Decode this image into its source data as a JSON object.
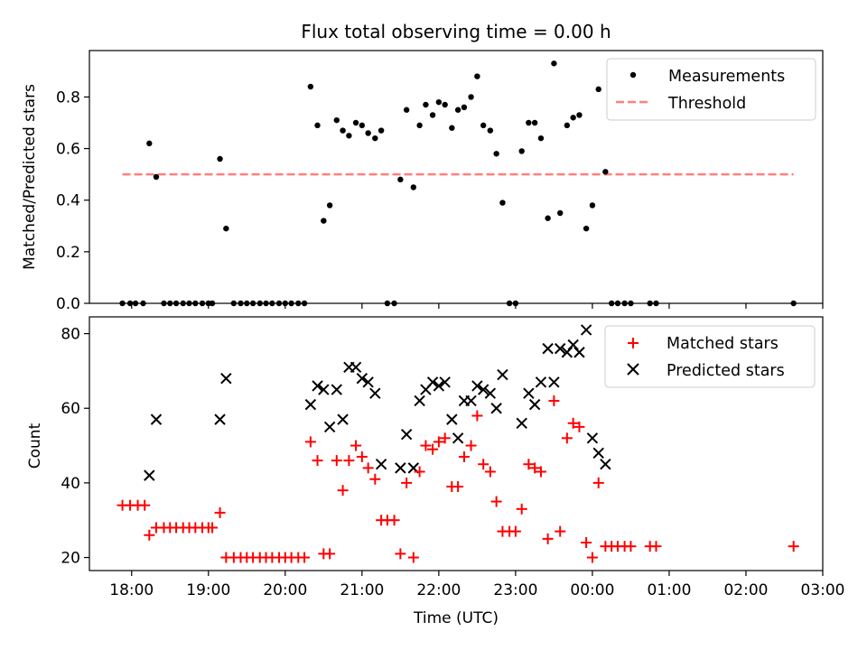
{
  "chart_data": [
    {
      "type": "scatter",
      "title": "Flux total observing time = 0.00 h",
      "xlabel": "",
      "ylabel": "Matched/Predicted stars",
      "x_unit": "hours after 18:00 UTC",
      "xlim": [
        -0.55,
        9.0
      ],
      "ylim": [
        0.0,
        0.98
      ],
      "yticks": [
        0.0,
        0.2,
        0.4,
        0.6,
        0.8
      ],
      "legend_position": "top-right",
      "legend": [
        "Measurements",
        "Threshold"
      ],
      "threshold": {
        "name": "Threshold",
        "value": 0.5,
        "x_range": [
          -0.12,
          8.62
        ],
        "color": "#ff7f7f",
        "style": "dashed"
      },
      "series": [
        {
          "name": "Measurements",
          "marker": "dot",
          "color": "#000000",
          "points": [
            [
              -0.12,
              0.0
            ],
            [
              -0.02,
              0.0
            ],
            [
              0.05,
              0.0
            ],
            [
              0.15,
              0.0
            ],
            [
              0.23,
              0.62
            ],
            [
              0.32,
              0.49
            ],
            [
              0.42,
              0.0
            ],
            [
              0.5,
              0.0
            ],
            [
              0.58,
              0.0
            ],
            [
              0.67,
              0.0
            ],
            [
              0.75,
              0.0
            ],
            [
              0.83,
              0.0
            ],
            [
              0.92,
              0.0
            ],
            [
              1.0,
              0.0
            ],
            [
              1.05,
              0.0
            ],
            [
              1.15,
              0.56
            ],
            [
              1.23,
              0.29
            ],
            [
              1.33,
              0.0
            ],
            [
              1.42,
              0.0
            ],
            [
              1.5,
              0.0
            ],
            [
              1.58,
              0.0
            ],
            [
              1.67,
              0.0
            ],
            [
              1.75,
              0.0
            ],
            [
              1.83,
              0.0
            ],
            [
              1.92,
              0.0
            ],
            [
              2.0,
              0.0
            ],
            [
              2.08,
              0.0
            ],
            [
              2.17,
              0.0
            ],
            [
              2.25,
              0.0
            ],
            [
              2.33,
              0.84
            ],
            [
              2.42,
              0.69
            ],
            [
              2.5,
              0.32
            ],
            [
              2.58,
              0.38
            ],
            [
              2.67,
              0.71
            ],
            [
              2.75,
              0.67
            ],
            [
              2.83,
              0.65
            ],
            [
              2.92,
              0.7
            ],
            [
              3.0,
              0.69
            ],
            [
              3.08,
              0.66
            ],
            [
              3.17,
              0.64
            ],
            [
              3.25,
              0.67
            ],
            [
              3.33,
              0.0
            ],
            [
              3.42,
              0.0
            ],
            [
              3.5,
              0.48
            ],
            [
              3.58,
              0.75
            ],
            [
              3.67,
              0.45
            ],
            [
              3.75,
              0.69
            ],
            [
              3.83,
              0.77
            ],
            [
              3.92,
              0.73
            ],
            [
              4.0,
              0.78
            ],
            [
              4.08,
              0.77
            ],
            [
              4.17,
              0.68
            ],
            [
              4.25,
              0.75
            ],
            [
              4.33,
              0.76
            ],
            [
              4.42,
              0.8
            ],
            [
              4.5,
              0.88
            ],
            [
              4.58,
              0.69
            ],
            [
              4.67,
              0.67
            ],
            [
              4.75,
              0.58
            ],
            [
              4.83,
              0.39
            ],
            [
              4.92,
              0.0
            ],
            [
              5.0,
              0.0
            ],
            [
              5.08,
              0.59
            ],
            [
              5.17,
              0.7
            ],
            [
              5.25,
              0.7
            ],
            [
              5.33,
              0.64
            ],
            [
              5.42,
              0.33
            ],
            [
              5.5,
              0.93
            ],
            [
              5.58,
              0.35
            ],
            [
              5.67,
              0.69
            ],
            [
              5.75,
              0.72
            ],
            [
              5.83,
              0.73
            ],
            [
              5.92,
              0.29
            ],
            [
              6.0,
              0.38
            ],
            [
              6.08,
              0.83
            ],
            [
              6.17,
              0.51
            ],
            [
              6.25,
              0.0
            ],
            [
              6.33,
              0.0
            ],
            [
              6.42,
              0.0
            ],
            [
              6.5,
              0.0
            ],
            [
              6.75,
              0.0
            ],
            [
              6.83,
              0.0
            ],
            [
              8.62,
              0.0
            ]
          ]
        }
      ]
    },
    {
      "type": "scatter",
      "title": "",
      "xlabel": "Time (UTC)",
      "ylabel": "Count",
      "x_unit": "hours after 18:00 UTC",
      "xlim": [
        -0.55,
        9.0
      ],
      "ylim": [
        16.5,
        84.5
      ],
      "yticks": [
        20,
        40,
        60,
        80
      ],
      "xtick_labels": [
        "18:00",
        "19:00",
        "20:00",
        "21:00",
        "22:00",
        "23:00",
        "00:00",
        "01:00",
        "02:00",
        "03:00"
      ],
      "legend_position": "top-right",
      "legend": [
        "Matched stars",
        "Predicted stars"
      ],
      "series": [
        {
          "name": "Matched stars",
          "marker": "plus",
          "color": "#ff0000",
          "points": [
            [
              -0.12,
              34
            ],
            [
              -0.02,
              34
            ],
            [
              0.08,
              34
            ],
            [
              0.17,
              34
            ],
            [
              0.23,
              26
            ],
            [
              0.32,
              28
            ],
            [
              0.42,
              28
            ],
            [
              0.5,
              28
            ],
            [
              0.58,
              28
            ],
            [
              0.67,
              28
            ],
            [
              0.75,
              28
            ],
            [
              0.83,
              28
            ],
            [
              0.92,
              28
            ],
            [
              1.0,
              28
            ],
            [
              1.05,
              28
            ],
            [
              1.15,
              32
            ],
            [
              1.23,
              20
            ],
            [
              1.33,
              20
            ],
            [
              1.42,
              20
            ],
            [
              1.5,
              20
            ],
            [
              1.58,
              20
            ],
            [
              1.67,
              20
            ],
            [
              1.75,
              20
            ],
            [
              1.83,
              20
            ],
            [
              1.92,
              20
            ],
            [
              2.0,
              20
            ],
            [
              2.08,
              20
            ],
            [
              2.17,
              20
            ],
            [
              2.25,
              20
            ],
            [
              2.33,
              51
            ],
            [
              2.42,
              46
            ],
            [
              2.5,
              21
            ],
            [
              2.58,
              21
            ],
            [
              2.67,
              46
            ],
            [
              2.75,
              38
            ],
            [
              2.83,
              46
            ],
            [
              2.92,
              50
            ],
            [
              3.0,
              47
            ],
            [
              3.08,
              44
            ],
            [
              3.17,
              41
            ],
            [
              3.25,
              30
            ],
            [
              3.33,
              30
            ],
            [
              3.42,
              30
            ],
            [
              3.5,
              21
            ],
            [
              3.58,
              40
            ],
            [
              3.67,
              20
            ],
            [
              3.75,
              43
            ],
            [
              3.83,
              50
            ],
            [
              3.92,
              49
            ],
            [
              4.0,
              51
            ],
            [
              4.08,
              52
            ],
            [
              4.17,
              39
            ],
            [
              4.25,
              39
            ],
            [
              4.33,
              47
            ],
            [
              4.42,
              50
            ],
            [
              4.5,
              58
            ],
            [
              4.58,
              45
            ],
            [
              4.67,
              43
            ],
            [
              4.75,
              35
            ],
            [
              4.83,
              27
            ],
            [
              4.92,
              27
            ],
            [
              5.0,
              27
            ],
            [
              5.08,
              33
            ],
            [
              5.17,
              45
            ],
            [
              5.25,
              44
            ],
            [
              5.33,
              43
            ],
            [
              5.42,
              25
            ],
            [
              5.5,
              62
            ],
            [
              5.58,
              27
            ],
            [
              5.67,
              52
            ],
            [
              5.75,
              56
            ],
            [
              5.83,
              55
            ],
            [
              5.92,
              24
            ],
            [
              6.0,
              20
            ],
            [
              6.08,
              40
            ],
            [
              6.17,
              23
            ],
            [
              6.25,
              23
            ],
            [
              6.33,
              23
            ],
            [
              6.42,
              23
            ],
            [
              6.5,
              23
            ],
            [
              6.75,
              23
            ],
            [
              6.83,
              23
            ],
            [
              8.62,
              23
            ]
          ]
        },
        {
          "name": "Predicted stars",
          "marker": "x",
          "color": "#000000",
          "points": [
            [
              0.23,
              42
            ],
            [
              0.32,
              57
            ],
            [
              1.15,
              57
            ],
            [
              1.23,
              68
            ],
            [
              2.33,
              61
            ],
            [
              2.42,
              66
            ],
            [
              2.5,
              65
            ],
            [
              2.58,
              55
            ],
            [
              2.67,
              65
            ],
            [
              2.75,
              57
            ],
            [
              2.83,
              71
            ],
            [
              2.92,
              71
            ],
            [
              3.0,
              68
            ],
            [
              3.08,
              67
            ],
            [
              3.17,
              64
            ],
            [
              3.25,
              45
            ],
            [
              3.5,
              44
            ],
            [
              3.58,
              53
            ],
            [
              3.67,
              44
            ],
            [
              3.75,
              62
            ],
            [
              3.83,
              65
            ],
            [
              3.92,
              67
            ],
            [
              4.0,
              66
            ],
            [
              4.08,
              67
            ],
            [
              4.17,
              57
            ],
            [
              4.25,
              52
            ],
            [
              4.33,
              62
            ],
            [
              4.42,
              62
            ],
            [
              4.5,
              66
            ],
            [
              4.58,
              65
            ],
            [
              4.67,
              64
            ],
            [
              4.75,
              60
            ],
            [
              4.83,
              69
            ],
            [
              5.08,
              56
            ],
            [
              5.17,
              64
            ],
            [
              5.25,
              61
            ],
            [
              5.33,
              67
            ],
            [
              5.42,
              76
            ],
            [
              5.5,
              67
            ],
            [
              5.58,
              76
            ],
            [
              5.67,
              75
            ],
            [
              5.75,
              77
            ],
            [
              5.83,
              75
            ],
            [
              5.92,
              81
            ],
            [
              6.0,
              52
            ],
            [
              6.08,
              48
            ],
            [
              6.17,
              45
            ]
          ]
        }
      ]
    }
  ]
}
